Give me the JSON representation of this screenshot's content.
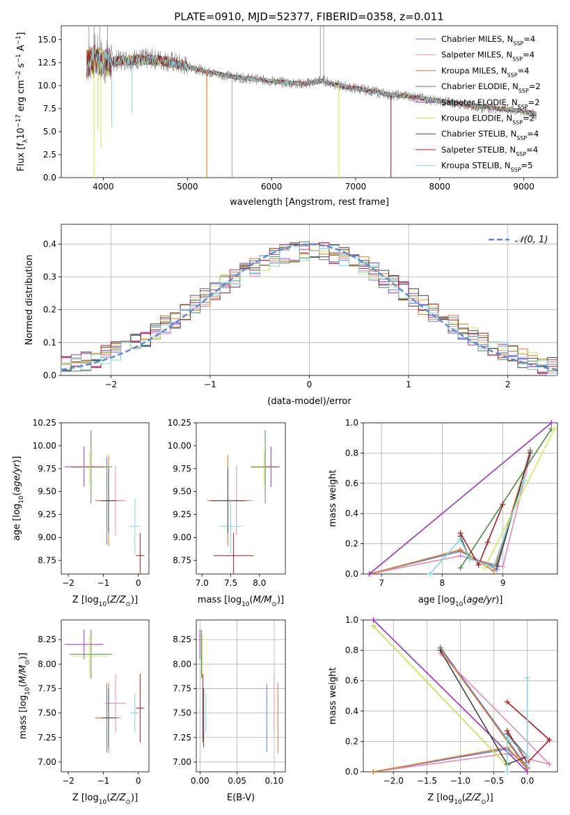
{
  "figure": {
    "title": "PLATE=0910, MJD=52377, FIBERID=0358, z=0.011"
  },
  "series_styles": [
    {
      "name": "Chabrier MILES, N_SSP=4",
      "color": "#5b7fd8"
    },
    {
      "name": "Salpeter MILES, N_SSP=4",
      "color": "#e887b8"
    },
    {
      "name": "Kroupa MILES, N_SSP=4",
      "color": "#e07b26"
    },
    {
      "name": "Chabrier ELODIE, N_SSP=2",
      "color": "#4a8a4a"
    },
    {
      "name": "Salpeter ELODIE, N_SSP=2",
      "color": "#9b30c0"
    },
    {
      "name": "Kroupa ELODIE, N_SSP=2",
      "color": "#d4e85a"
    },
    {
      "name": "Chabrier STELIB, N_SSP=4",
      "color": "#444444"
    },
    {
      "name": "Salpeter STELIB, N_SSP=4",
      "color": "#b01c1c"
    },
    {
      "name": "Kroupa STELIB, N_SSP=5",
      "color": "#7dd8e0"
    }
  ],
  "chart_data": [
    {
      "id": "spectrum",
      "type": "line",
      "title": "PLATE=0910, MJD=52377, FIBERID=0358, z=0.011",
      "xlabel": "wavelength [Angstrom, rest frame]",
      "ylabel": "Flux [f_λ 10^-17 erg cm^-2 s^-1 A^-1]",
      "xlim": [
        3500,
        9400
      ],
      "ylim": [
        0,
        16.5
      ],
      "xticks": [
        4000,
        5000,
        6000,
        7000,
        8000,
        9000
      ],
      "yticks": [
        0.0,
        2.5,
        5.0,
        7.5,
        10.0,
        12.5,
        15.0
      ],
      "observed_color": "#888888",
      "observed": {
        "x": [
          3800,
          3900,
          4000,
          4200,
          4400,
          4600,
          4800,
          5000,
          5200,
          5400,
          5600,
          5800,
          6000,
          6200,
          6400,
          6600,
          6800,
          7000,
          7200,
          7400,
          7600,
          7800,
          8000,
          8200,
          8400,
          8600,
          8800,
          9000,
          9150
        ],
        "y": [
          12.5,
          13.3,
          12.5,
          12.8,
          12.9,
          12.9,
          12.6,
          12.1,
          11.6,
          11.2,
          10.9,
          10.7,
          10.5,
          10.3,
          10.2,
          10.6,
          10.0,
          9.7,
          9.4,
          9.0,
          8.9,
          8.6,
          8.3,
          8.1,
          7.8,
          7.6,
          7.4,
          7.2,
          6.8
        ]
      },
      "model": {
        "x": [
          3800,
          3900,
          4000,
          4200,
          4400,
          4600,
          4800,
          5000,
          5200,
          5400,
          5600,
          5800,
          6000,
          6200,
          6400,
          6600,
          6800,
          7000,
          7200,
          7400,
          7600,
          7800,
          8000,
          8200,
          8400,
          8600,
          8800,
          9000,
          9150
        ],
        "y": [
          12.3,
          12.9,
          12.4,
          12.7,
          12.8,
          12.8,
          12.5,
          12.1,
          11.6,
          11.2,
          10.9,
          10.7,
          10.5,
          10.3,
          10.2,
          10.5,
          10.0,
          9.7,
          9.4,
          9.0,
          8.9,
          8.6,
          8.3,
          8.1,
          7.8,
          7.6,
          7.4,
          7.2,
          6.9
        ]
      },
      "legend": [
        "Chabrier MILES, N_SSP=4",
        "Salpeter MILES, N_SSP=4",
        "Kroupa MILES, N_SSP=4",
        "Chabrier ELODIE, N_SSP=2",
        "Salpeter ELODIE, N_SSP=2",
        "Kroupa ELODIE, N_SSP=2",
        "Chabrier STELIB, N_SSP=4",
        "Salpeter STELIB, N_SSP=4",
        "Kroupa STELIB, N_SSP=5"
      ],
      "legend_labels": [
        {
          "prefix": "Chabrier MILES, N",
          "sub": "SSP",
          "suffix": "=4"
        },
        {
          "prefix": "Salpeter MILES, N",
          "sub": "SSP",
          "suffix": "=4"
        },
        {
          "prefix": "Kroupa MILES, N",
          "sub": "SSP",
          "suffix": "=4"
        },
        {
          "prefix": "Chabrier ELODIE, N",
          "sub": "SSP",
          "suffix": "=2"
        },
        {
          "prefix": "Salpeter ELODIE, N",
          "sub": "SSP",
          "suffix": "=2"
        },
        {
          "prefix": "Kroupa ELODIE, N",
          "sub": "SSP",
          "suffix": "=2"
        },
        {
          "prefix": "Chabrier STELIB, N",
          "sub": "SSP",
          "suffix": "=4"
        },
        {
          "prefix": "Salpeter STELIB, N",
          "sub": "SSP",
          "suffix": "=4"
        },
        {
          "prefix": "Kroupa STELIB, N",
          "sub": "SSP",
          "suffix": "=5"
        }
      ],
      "legend_loc": "upper right"
    },
    {
      "id": "residuals",
      "type": "area",
      "xlabel": "(data-model)/error",
      "ylabel": "Normed distribution",
      "xlim": [
        -2.5,
        2.5
      ],
      "ylim": [
        0,
        0.46
      ],
      "xticks": [
        -2,
        -1,
        0,
        1,
        2
      ],
      "yticks": [
        0.0,
        0.1,
        0.2,
        0.3,
        0.4
      ],
      "grid": true,
      "bins": {
        "start": -2.5,
        "width": 0.1,
        "count": 50
      },
      "reference_curve": {
        "name": "N(0,1)",
        "color": "#5b8bd8",
        "style": "dashed"
      },
      "legend_label": {
        "main": "𝒩(0, 1)"
      },
      "legend_loc": "upper right"
    },
    {
      "id": "Z_vs_age",
      "type": "scatter",
      "xlabel": "Z [log10(Z/Z☉)]",
      "ylabel": "age [log10(age/yr)]",
      "xlim": [
        -2.2,
        0.3
      ],
      "ylim": [
        8.6,
        10.25
      ],
      "xticks": [
        -2,
        -1,
        0
      ],
      "yticks": [
        8.75,
        9.0,
        9.25,
        9.5,
        9.75,
        10.0,
        10.25
      ]
    },
    {
      "id": "mass_vs_age",
      "type": "scatter",
      "xlabel": "mass [log10(M/M☉)]",
      "xlim": [
        6.9,
        8.45
      ],
      "ylim": [
        8.6,
        10.25
      ],
      "xticks": [
        7.0,
        7.5,
        8.0
      ],
      "yticks": [
        8.75,
        9.0,
        9.25,
        9.5,
        9.75,
        10.0,
        10.25
      ]
    },
    {
      "id": "age_vs_weight",
      "type": "line",
      "xlabel": "age [log10(age/yr)]",
      "ylabel": "mass weight",
      "xlim": [
        6.7,
        9.9
      ],
      "ylim": [
        0,
        1.0
      ],
      "xticks": [
        7,
        8,
        9
      ],
      "yticks": [
        0.0,
        0.2,
        0.4,
        0.6,
        0.8,
        1.0
      ],
      "grid": true
    },
    {
      "id": "Z_vs_mass",
      "type": "scatter",
      "xlabel": "Z [log10(Z/Z☉)]",
      "ylabel": "mass [log10(M/M☉)]",
      "xlim": [
        -2.2,
        0.3
      ],
      "ylim": [
        6.9,
        8.45
      ],
      "xticks": [
        -2,
        -1,
        0
      ],
      "yticks": [
        7.0,
        7.25,
        7.5,
        7.75,
        8.0,
        8.25
      ]
    },
    {
      "id": "ebv_vs_mass",
      "type": "scatter",
      "xlabel": "E(B-V)",
      "xlim": [
        -0.005,
        0.115
      ],
      "ylim": [
        6.9,
        8.45
      ],
      "xticks": [
        0.0,
        0.05,
        0.1
      ],
      "yticks": [
        7.0,
        7.25,
        7.5,
        7.75,
        8.0,
        8.25
      ],
      "grid": true
    },
    {
      "id": "Z_vs_weight",
      "type": "line",
      "xlabel": "Z [log10(Z/Z☉)]",
      "ylabel": "mass weight",
      "xlim": [
        -2.45,
        0.45
      ],
      "ylim": [
        0,
        1.0
      ],
      "xticks": [
        -2.0,
        -1.5,
        -1.0,
        -0.5,
        0.0
      ],
      "yticks": [
        0.0,
        0.2,
        0.4,
        0.6,
        0.8,
        1.0
      ],
      "grid": true
    }
  ],
  "fits": [
    {
      "name": "Chabrier MILES, N_SSP=4",
      "ages": [
        6.8,
        8.3,
        8.9,
        9.45
      ],
      "Z": [
        -2.3,
        -0.3,
        0.0,
        -1.3
      ],
      "weights": [
        0.0,
        0.15,
        0.03,
        0.82
      ],
      "age_mean": 9.4,
      "age_err": 0.48,
      "Z_mean": -0.9,
      "Z_err": 0.33,
      "mass_mean": 7.45,
      "mass_err": 0.35,
      "ebv": 0.09
    },
    {
      "name": "Salpeter MILES, N_SSP=4",
      "ages": [
        6.8,
        8.3,
        9.0,
        9.45
      ],
      "Z": [
        -2.3,
        -0.3,
        0.33,
        -1.3
      ],
      "weights": [
        0.0,
        0.12,
        0.05,
        0.78
      ],
      "age_mean": 9.4,
      "age_err": 0.38,
      "Z_mean": -0.65,
      "Z_err": 0.3,
      "mass_mean": 7.6,
      "mass_err": 0.3,
      "ebv": 0.1
    },
    {
      "name": "Kroupa MILES, N_SSP=4",
      "ages": [
        6.8,
        8.3,
        8.85,
        9.45
      ],
      "Z": [
        -2.3,
        -0.3,
        0.0,
        -1.3
      ],
      "weights": [
        0.0,
        0.16,
        0.02,
        0.81
      ],
      "age_mean": 9.4,
      "age_err": 0.5,
      "Z_mean": -0.85,
      "Z_err": 0.35,
      "mass_mean": 7.45,
      "mass_err": 0.36,
      "ebv": 0.105
    },
    {
      "name": "Chabrier ELODIE, N_SSP=2",
      "ages": [
        8.3,
        9.8
      ],
      "Z": [
        -0.3,
        -2.3
      ],
      "weights": [
        0.04,
        0.96
      ],
      "age_mean": 9.77,
      "age_err": 0.4,
      "Z_mean": -1.35,
      "Z_err": 0.6,
      "mass_mean": 8.1,
      "mass_err": 0.25,
      "ebv": 0.002
    },
    {
      "name": "Salpeter ELODIE, N_SSP=2",
      "ages": [
        6.8,
        9.8
      ],
      "Z": [
        0.0,
        -2.3
      ],
      "weights": [
        0.0,
        1.0
      ],
      "age_mean": 9.77,
      "age_err": 0.22,
      "Z_mean": -1.55,
      "Z_err": 0.55,
      "mass_mean": 8.2,
      "mass_err": 0.15,
      "ebv": 0.0
    },
    {
      "name": "Kroupa ELODIE, N_SSP=2",
      "ages": [
        8.7,
        9.85
      ],
      "Z": [
        -0.3,
        -2.3
      ],
      "weights": [
        0.04,
        0.96
      ],
      "age_mean": 9.76,
      "age_err": 0.18,
      "Z_mean": -1.4,
      "Z_err": 0.5,
      "mass_mean": 8.08,
      "mass_err": 0.22,
      "ebv": 0.003
    },
    {
      "name": "Chabrier STELIB, N_SSP=4",
      "ages": [
        8.3,
        8.45,
        8.9,
        9.45
      ],
      "Z": [
        -0.3,
        0.0,
        -0.3,
        -1.3
      ],
      "weights": [
        0.25,
        0.1,
        0.05,
        0.8
      ],
      "age_mean": 9.4,
      "age_err": 0.35,
      "Z_mean": -0.85,
      "Z_err": 0.2,
      "mass_mean": 7.45,
      "mass_err": 0.3,
      "ebv": 0.005
    },
    {
      "name": "Salpeter STELIB, N_SSP=4",
      "ages": [
        8.3,
        8.6,
        8.75,
        9.0
      ],
      "Z": [
        -0.3,
        0.0,
        0.33,
        -0.3
      ],
      "weights": [
        0.27,
        0.06,
        0.21,
        0.46
      ],
      "age_mean": 8.8,
      "age_err": 0.25,
      "Z_mean": 0.05,
      "Z_err": 0.12,
      "mass_mean": 7.55,
      "mass_err": 0.35,
      "ebv": 0.004
    },
    {
      "name": "Kroupa STELIB, N_SSP=5",
      "ages": [
        7.8,
        8.3,
        8.45,
        8.85,
        9.35
      ],
      "Z": [
        -0.3,
        -0.3,
        0.0,
        0.0,
        0.0
      ],
      "weights": [
        0.0,
        0.23,
        0.1,
        0.05,
        0.62
      ],
      "age_mean": 9.12,
      "age_err": 0.3,
      "Z_mean": -0.1,
      "Z_err": 0.15,
      "mass_mean": 7.5,
      "mass_err": 0.2,
      "ebv": 0.008
    }
  ]
}
